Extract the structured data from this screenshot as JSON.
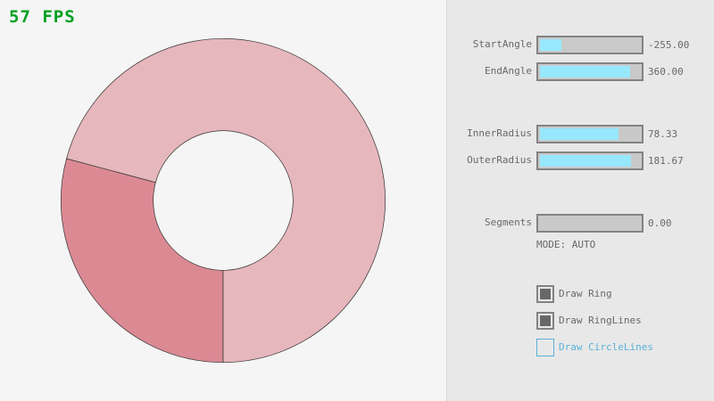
{
  "fps": "57 FPS",
  "ring": {
    "center_color": "#f5f5f5",
    "primary_color": "#db8a94",
    "overlap_color": "#e6b7bc",
    "outline_color": "#333333",
    "inner_radius": 78.33,
    "outer_radius": 181.67,
    "start_angle": -255,
    "end_angle": 360
  },
  "controls": {
    "sliders": [
      {
        "label": "StartAngle",
        "value": "-255.00",
        "fraction": 0.217
      },
      {
        "label": "EndAngle",
        "value": "360.00",
        "fraction": 0.9
      },
      {
        "label": "InnerRadius",
        "value": "78.33",
        "fraction": 0.783
      },
      {
        "label": "OuterRadius",
        "value": "181.67",
        "fraction": 0.908
      },
      {
        "label": "Segments",
        "value": "0.00",
        "fraction": 0
      }
    ],
    "mode": "MODE: AUTO",
    "checkboxes": [
      {
        "label": "Draw Ring",
        "checked": true
      },
      {
        "label": "Draw RingLines",
        "checked": true
      },
      {
        "label": "Draw CircleLines",
        "checked": false
      }
    ]
  },
  "colors": {
    "slider_fill": "#97e8ff",
    "focus": "#5bb2d9"
  }
}
